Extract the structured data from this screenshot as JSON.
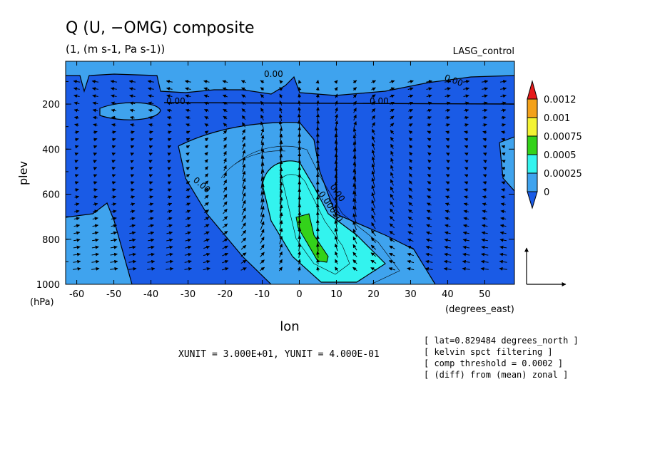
{
  "chart_data": {
    "type": "heatmap",
    "title": "Q (U, −OMG) composite",
    "subtitle": "(1, (m s-1, Pa s-1))",
    "experiment": "LASG_control",
    "xlabel": "lon",
    "xunits": "(degrees_east)",
    "ylabel": "plev",
    "yunits": "(hPa)",
    "xlim": [
      -63,
      58
    ],
    "ylim": [
      1000,
      10
    ],
    "x_ticks": [
      "-60",
      "-50",
      "-40",
      "-30",
      "-20",
      "-10",
      "0",
      "10",
      "20",
      "30",
      "40",
      "50"
    ],
    "y_ticks": [
      "200",
      "400",
      "600",
      "800",
      "1000"
    ],
    "colorbar": {
      "levels": [
        "0",
        "0.00025",
        "0.0005",
        "0.00075",
        "0.001",
        "0.0012"
      ],
      "colors": [
        "#1a5be6",
        "#3fa3ee",
        "#33f3ee",
        "#33d21a",
        "#f3f333",
        "#f3a11a",
        "#e61a1a"
      ]
    },
    "contour_labels": [
      "0.00",
      "0.00",
      "0.00",
      "0.00",
      "0.00",
      "0.00",
      "0.00050"
    ],
    "vector_unit_text": "XUNIT = 3.000E+01, YUNIT = 4.000E-01",
    "notes": [
      "[ lat=0.829484 degrees_north ]",
      "[ kelvin spct filtering ]",
      "[ comp threshold = 0.0002 ]",
      "[ (diff) from (mean) zonal ]"
    ],
    "regions": [
      {
        "level": "0",
        "description": "background below 0"
      },
      {
        "level": "0.00025",
        "x_range": [
          -40,
          35
        ],
        "p_range": [
          300,
          1000
        ]
      },
      {
        "level": "0.0005",
        "x_range": [
          -5,
          20
        ],
        "p_range": [
          450,
          950
        ]
      },
      {
        "level": "0.00075",
        "x_range": [
          0,
          8
        ],
        "p_range": [
          680,
          900
        ]
      }
    ]
  }
}
